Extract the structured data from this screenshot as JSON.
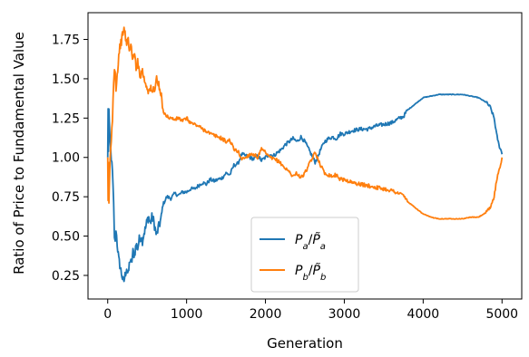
{
  "chart_data": {
    "type": "line",
    "title": "",
    "xlabel": "Generation",
    "ylabel": "Ratio of Price to Fundamental Value",
    "xlim": [
      -250,
      5250
    ],
    "ylim": [
      0.1,
      1.92
    ],
    "x_ticks": [
      0,
      1000,
      2000,
      3000,
      4000,
      5000
    ],
    "x_tick_labels": [
      "0",
      "1000",
      "2000",
      "3000",
      "4000",
      "5000"
    ],
    "y_ticks": [
      0.25,
      0.5,
      0.75,
      1.0,
      1.25,
      1.5,
      1.75
    ],
    "y_tick_labels": [
      "0.25",
      "0.50",
      "0.75",
      "1.00",
      "1.25",
      "1.50",
      "1.75"
    ],
    "grid": false,
    "legend_position": "lower-center",
    "series": [
      {
        "name": "P_a/P̃_a",
        "legend_label": {
          "main": "P",
          "sub": "a",
          "sep": "/",
          "main2": "P̃",
          "sub2": "a"
        },
        "color": "#1f77b4",
        "points": [
          [
            0,
            1.0
          ],
          [
            5,
            1.3
          ],
          [
            10,
            1.05
          ],
          [
            15,
            1.3
          ],
          [
            20,
            1.2
          ],
          [
            30,
            1.1
          ],
          [
            45,
            1.0
          ],
          [
            60,
            0.9
          ],
          [
            75,
            0.7
          ],
          [
            85,
            0.5
          ],
          [
            95,
            0.45
          ],
          [
            105,
            0.55
          ],
          [
            120,
            0.45
          ],
          [
            140,
            0.35
          ],
          [
            160,
            0.3
          ],
          [
            180,
            0.25
          ],
          [
            200,
            0.2
          ],
          [
            220,
            0.25
          ],
          [
            240,
            0.3
          ],
          [
            260,
            0.25
          ],
          [
            280,
            0.35
          ],
          [
            300,
            0.32
          ],
          [
            320,
            0.4
          ],
          [
            340,
            0.38
          ],
          [
            360,
            0.45
          ],
          [
            380,
            0.42
          ],
          [
            400,
            0.48
          ],
          [
            420,
            0.5
          ],
          [
            440,
            0.47
          ],
          [
            460,
            0.52
          ],
          [
            480,
            0.55
          ],
          [
            500,
            0.6
          ],
          [
            520,
            0.62
          ],
          [
            540,
            0.58
          ],
          [
            560,
            0.62
          ],
          [
            580,
            0.6
          ],
          [
            600,
            0.55
          ],
          [
            620,
            0.5
          ],
          [
            640,
            0.55
          ],
          [
            660,
            0.58
          ],
          [
            680,
            0.62
          ],
          [
            700,
            0.7
          ],
          [
            750,
            0.75
          ],
          [
            800,
            0.74
          ],
          [
            850,
            0.77
          ],
          [
            900,
            0.76
          ],
          [
            950,
            0.78
          ],
          [
            1000,
            0.78
          ],
          [
            1050,
            0.8
          ],
          [
            1100,
            0.8
          ],
          [
            1150,
            0.82
          ],
          [
            1200,
            0.84
          ],
          [
            1250,
            0.83
          ],
          [
            1300,
            0.86
          ],
          [
            1350,
            0.85
          ],
          [
            1400,
            0.86
          ],
          [
            1450,
            0.87
          ],
          [
            1500,
            0.9
          ],
          [
            1550,
            0.89
          ],
          [
            1600,
            0.95
          ],
          [
            1650,
            0.96
          ],
          [
            1700,
            1.02
          ],
          [
            1750,
            1.01
          ],
          [
            1800,
            1.0
          ],
          [
            1850,
            0.99
          ],
          [
            1900,
            1.01
          ],
          [
            1950,
            0.98
          ],
          [
            2000,
            1.0
          ],
          [
            2050,
            1.02
          ],
          [
            2100,
            1.01
          ],
          [
            2150,
            1.03
          ],
          [
            2200,
            1.05
          ],
          [
            2250,
            1.08
          ],
          [
            2300,
            1.1
          ],
          [
            2350,
            1.12
          ],
          [
            2400,
            1.1
          ],
          [
            2450,
            1.13
          ],
          [
            2500,
            1.1
          ],
          [
            2550,
            1.05
          ],
          [
            2600,
            1.0
          ],
          [
            2630,
            0.97
          ],
          [
            2660,
            1.0
          ],
          [
            2700,
            1.05
          ],
          [
            2750,
            1.1
          ],
          [
            2800,
            1.12
          ],
          [
            2850,
            1.13
          ],
          [
            2900,
            1.12
          ],
          [
            2950,
            1.15
          ],
          [
            3000,
            1.15
          ],
          [
            3100,
            1.17
          ],
          [
            3200,
            1.18
          ],
          [
            3300,
            1.18
          ],
          [
            3400,
            1.2
          ],
          [
            3500,
            1.21
          ],
          [
            3600,
            1.22
          ],
          [
            3700,
            1.25
          ],
          [
            3750,
            1.26
          ],
          [
            3800,
            1.3
          ],
          [
            3850,
            1.32
          ],
          [
            3900,
            1.34
          ],
          [
            3950,
            1.36
          ],
          [
            4000,
            1.38
          ],
          [
            4100,
            1.39
          ],
          [
            4200,
            1.4
          ],
          [
            4300,
            1.4
          ],
          [
            4400,
            1.4
          ],
          [
            4500,
            1.4
          ],
          [
            4600,
            1.39
          ],
          [
            4700,
            1.38
          ],
          [
            4800,
            1.35
          ],
          [
            4850,
            1.32
          ],
          [
            4900,
            1.25
          ],
          [
            4930,
            1.15
          ],
          [
            4960,
            1.08
          ],
          [
            4990,
            1.04
          ],
          [
            5000,
            1.02
          ]
        ]
      },
      {
        "name": "P_b/P̃_b",
        "legend_label": {
          "main": "P",
          "sub": "b",
          "sep": "/",
          "main2": "P̃",
          "sub2": "b"
        },
        "color": "#ff7f0e",
        "points": [
          [
            0,
            1.0
          ],
          [
            5,
            0.7
          ],
          [
            10,
            0.95
          ],
          [
            15,
            0.7
          ],
          [
            20,
            0.8
          ],
          [
            30,
            1.0
          ],
          [
            45,
            1.1
          ],
          [
            60,
            1.25
          ],
          [
            75,
            1.5
          ],
          [
            85,
            1.55
          ],
          [
            95,
            1.55
          ],
          [
            105,
            1.45
          ],
          [
            120,
            1.52
          ],
          [
            140,
            1.65
          ],
          [
            160,
            1.72
          ],
          [
            180,
            1.75
          ],
          [
            200,
            1.82
          ],
          [
            220,
            1.78
          ],
          [
            240,
            1.72
          ],
          [
            260,
            1.75
          ],
          [
            280,
            1.68
          ],
          [
            300,
            1.7
          ],
          [
            320,
            1.62
          ],
          [
            340,
            1.65
          ],
          [
            360,
            1.58
          ],
          [
            380,
            1.6
          ],
          [
            400,
            1.55
          ],
          [
            420,
            1.52
          ],
          [
            440,
            1.56
          ],
          [
            460,
            1.5
          ],
          [
            480,
            1.47
          ],
          [
            500,
            1.45
          ],
          [
            520,
            1.42
          ],
          [
            540,
            1.44
          ],
          [
            560,
            1.41
          ],
          [
            580,
            1.43
          ],
          [
            600,
            1.45
          ],
          [
            620,
            1.5
          ],
          [
            640,
            1.47
          ],
          [
            660,
            1.42
          ],
          [
            680,
            1.38
          ],
          [
            700,
            1.3
          ],
          [
            750,
            1.26
          ],
          [
            800,
            1.25
          ],
          [
            850,
            1.24
          ],
          [
            900,
            1.25
          ],
          [
            950,
            1.23
          ],
          [
            1000,
            1.25
          ],
          [
            1050,
            1.22
          ],
          [
            1100,
            1.21
          ],
          [
            1150,
            1.2
          ],
          [
            1200,
            1.18
          ],
          [
            1250,
            1.17
          ],
          [
            1300,
            1.15
          ],
          [
            1350,
            1.14
          ],
          [
            1400,
            1.13
          ],
          [
            1450,
            1.12
          ],
          [
            1500,
            1.1
          ],
          [
            1550,
            1.11
          ],
          [
            1600,
            1.05
          ],
          [
            1650,
            1.04
          ],
          [
            1700,
            0.99
          ],
          [
            1750,
            1.0
          ],
          [
            1800,
            1.02
          ],
          [
            1850,
            1.02
          ],
          [
            1900,
            1.0
          ],
          [
            1950,
            1.05
          ],
          [
            2000,
            1.03
          ],
          [
            2050,
            1.0
          ],
          [
            2100,
            0.99
          ],
          [
            2150,
            0.98
          ],
          [
            2200,
            0.96
          ],
          [
            2250,
            0.93
          ],
          [
            2300,
            0.91
          ],
          [
            2350,
            0.88
          ],
          [
            2400,
            0.9
          ],
          [
            2450,
            0.87
          ],
          [
            2500,
            0.9
          ],
          [
            2550,
            0.95
          ],
          [
            2600,
            1.0
          ],
          [
            2630,
            1.03
          ],
          [
            2660,
            1.0
          ],
          [
            2700,
            0.95
          ],
          [
            2750,
            0.9
          ],
          [
            2800,
            0.89
          ],
          [
            2850,
            0.88
          ],
          [
            2900,
            0.89
          ],
          [
            2950,
            0.86
          ],
          [
            3000,
            0.86
          ],
          [
            3100,
            0.84
          ],
          [
            3200,
            0.83
          ],
          [
            3300,
            0.82
          ],
          [
            3400,
            0.81
          ],
          [
            3500,
            0.8
          ],
          [
            3600,
            0.79
          ],
          [
            3700,
            0.77
          ],
          [
            3750,
            0.76
          ],
          [
            3800,
            0.72
          ],
          [
            3850,
            0.7
          ],
          [
            3900,
            0.68
          ],
          [
            3950,
            0.66
          ],
          [
            4000,
            0.64
          ],
          [
            4100,
            0.62
          ],
          [
            4200,
            0.61
          ],
          [
            4300,
            0.61
          ],
          [
            4400,
            0.61
          ],
          [
            4500,
            0.61
          ],
          [
            4600,
            0.62
          ],
          [
            4700,
            0.62
          ],
          [
            4800,
            0.65
          ],
          [
            4850,
            0.68
          ],
          [
            4900,
            0.75
          ],
          [
            4930,
            0.85
          ],
          [
            4960,
            0.92
          ],
          [
            4990,
            0.97
          ],
          [
            5000,
            1.0
          ]
        ]
      }
    ]
  }
}
